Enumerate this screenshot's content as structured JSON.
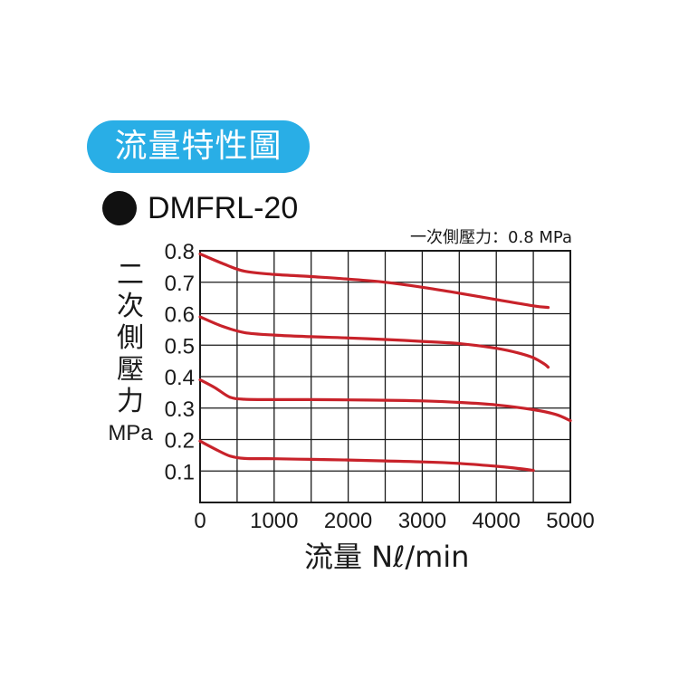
{
  "header": {
    "badge": "流量特性圖",
    "model": "DMFRL-20"
  },
  "chart_data": {
    "type": "line",
    "title": "",
    "annotation": "一次側壓力：0.8 MPa",
    "xlabel": "流量 Nℓ/min",
    "ylabel_chars": [
      "二",
      "次",
      "側",
      "壓",
      "力"
    ],
    "ylabel_unit": "MPa",
    "xlim": [
      0,
      5000
    ],
    "ylim": [
      0,
      0.8
    ],
    "xticks": [
      "0",
      "1000",
      "2000",
      "3000",
      "4000",
      "5000"
    ],
    "yticks": [
      "0.1",
      "0.2",
      "0.3",
      "0.4",
      "0.5",
      "0.6",
      "0.7",
      "0.8"
    ],
    "grid": true,
    "line_color": "#c8222a",
    "series": [
      {
        "x": [
          0,
          300,
          600,
          1000,
          1500,
          2000,
          2500,
          3000,
          3500,
          4000,
          4500,
          4700
        ],
        "y": [
          0.79,
          0.76,
          0.735,
          0.725,
          0.718,
          0.71,
          0.7,
          0.684,
          0.665,
          0.645,
          0.625,
          0.62
        ]
      },
      {
        "x": [
          0,
          300,
          600,
          1000,
          1500,
          2000,
          2500,
          3000,
          3500,
          4000,
          4300,
          4500,
          4650,
          4700
        ],
        "y": [
          0.59,
          0.56,
          0.54,
          0.532,
          0.527,
          0.523,
          0.518,
          0.512,
          0.505,
          0.49,
          0.475,
          0.46,
          0.44,
          0.43
        ]
      },
      {
        "x": [
          0,
          200,
          400,
          600,
          1000,
          1500,
          2000,
          2500,
          3000,
          3500,
          4000,
          4500,
          4800,
          5000
        ],
        "y": [
          0.39,
          0.365,
          0.335,
          0.328,
          0.327,
          0.327,
          0.326,
          0.325,
          0.323,
          0.318,
          0.31,
          0.295,
          0.28,
          0.26
        ]
      },
      {
        "x": [
          0,
          200,
          400,
          600,
          1000,
          1500,
          2000,
          2500,
          3000,
          3500,
          4000,
          4300,
          4500
        ],
        "y": [
          0.195,
          0.17,
          0.148,
          0.14,
          0.139,
          0.137,
          0.135,
          0.132,
          0.129,
          0.124,
          0.115,
          0.108,
          0.102
        ]
      }
    ]
  }
}
